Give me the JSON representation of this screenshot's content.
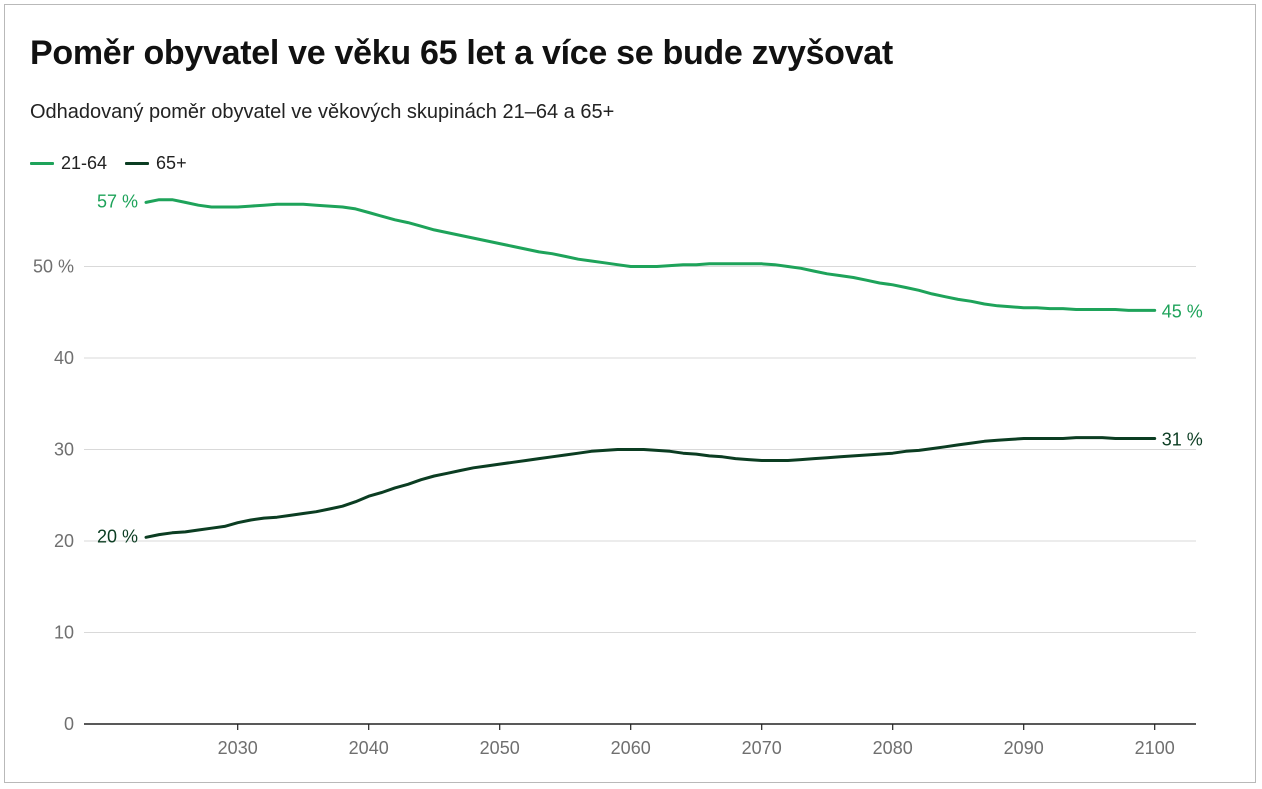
{
  "title": "Poměr obyvatel ve věku 65 let a více se bude zvyšovat",
  "subtitle": "Odhadovaný poměr obyvatel ve věkových skupinách 21–64 a 65+",
  "chart_data": {
    "type": "line",
    "title": "Poměr obyvatel ve věku 65 let a více se bude zvyšovat",
    "subtitle": "Odhadovaný poměr obyvatel ve věkových skupinách 21–64 a 65+",
    "xlabel": "",
    "ylabel": "",
    "xlim": [
      2022,
      2101
    ],
    "ylim": [
      0,
      60
    ],
    "grid": true,
    "legend": "top-left",
    "x_ticks": [
      2030,
      2040,
      2050,
      2060,
      2070,
      2080,
      2090,
      2100
    ],
    "x_tick_labels": [
      "2030",
      "2040",
      "2050",
      "2060",
      "2070",
      "2080",
      "2090",
      "2100"
    ],
    "y_ticks": [
      0,
      10,
      20,
      30,
      40,
      50
    ],
    "y_tick_labels": [
      "0",
      "10",
      "20",
      "30",
      "40",
      "50 %"
    ],
    "series": [
      {
        "name": "21-64",
        "color": "#1ea35a",
        "start_label": "57 %",
        "end_label": "45 %",
        "x": [
          2023,
          2024,
          2025,
          2026,
          2027,
          2028,
          2029,
          2030,
          2031,
          2032,
          2033,
          2034,
          2035,
          2036,
          2037,
          2038,
          2039,
          2040,
          2041,
          2042,
          2043,
          2044,
          2045,
          2046,
          2047,
          2048,
          2049,
          2050,
          2051,
          2052,
          2053,
          2054,
          2055,
          2056,
          2057,
          2058,
          2059,
          2060,
          2061,
          2062,
          2063,
          2064,
          2065,
          2066,
          2067,
          2068,
          2069,
          2070,
          2071,
          2072,
          2073,
          2074,
          2075,
          2076,
          2077,
          2078,
          2079,
          2080,
          2081,
          2082,
          2083,
          2084,
          2085,
          2086,
          2087,
          2088,
          2089,
          2090,
          2091,
          2092,
          2093,
          2094,
          2095,
          2096,
          2097,
          2098,
          2099,
          2100
        ],
        "values": [
          57.0,
          57.3,
          57.3,
          57.0,
          56.7,
          56.5,
          56.5,
          56.5,
          56.6,
          56.7,
          56.8,
          56.8,
          56.8,
          56.7,
          56.6,
          56.5,
          56.3,
          55.9,
          55.5,
          55.1,
          54.8,
          54.4,
          54.0,
          53.7,
          53.4,
          53.1,
          52.8,
          52.5,
          52.2,
          51.9,
          51.6,
          51.4,
          51.1,
          50.8,
          50.6,
          50.4,
          50.2,
          50.0,
          50.0,
          50.0,
          50.1,
          50.2,
          50.2,
          50.3,
          50.3,
          50.3,
          50.3,
          50.3,
          50.2,
          50.0,
          49.8,
          49.5,
          49.2,
          49.0,
          48.8,
          48.5,
          48.2,
          48.0,
          47.7,
          47.4,
          47.0,
          46.7,
          46.4,
          46.2,
          45.9,
          45.7,
          45.6,
          45.5,
          45.5,
          45.4,
          45.4,
          45.3,
          45.3,
          45.3,
          45.3,
          45.2,
          45.2,
          45.2
        ]
      },
      {
        "name": "65+",
        "color": "#0b3d22",
        "start_label": "20 %",
        "end_label": "31 %",
        "x": [
          2023,
          2024,
          2025,
          2026,
          2027,
          2028,
          2029,
          2030,
          2031,
          2032,
          2033,
          2034,
          2035,
          2036,
          2037,
          2038,
          2039,
          2040,
          2041,
          2042,
          2043,
          2044,
          2045,
          2046,
          2047,
          2048,
          2049,
          2050,
          2051,
          2052,
          2053,
          2054,
          2055,
          2056,
          2057,
          2058,
          2059,
          2060,
          2061,
          2062,
          2063,
          2064,
          2065,
          2066,
          2067,
          2068,
          2069,
          2070,
          2071,
          2072,
          2073,
          2074,
          2075,
          2076,
          2077,
          2078,
          2079,
          2080,
          2081,
          2082,
          2083,
          2084,
          2085,
          2086,
          2087,
          2088,
          2089,
          2090,
          2091,
          2092,
          2093,
          2094,
          2095,
          2096,
          2097,
          2098,
          2099,
          2100
        ],
        "values": [
          20.4,
          20.7,
          20.9,
          21.0,
          21.2,
          21.4,
          21.6,
          22.0,
          22.3,
          22.5,
          22.6,
          22.8,
          23.0,
          23.2,
          23.5,
          23.8,
          24.3,
          24.9,
          25.3,
          25.8,
          26.2,
          26.7,
          27.1,
          27.4,
          27.7,
          28.0,
          28.2,
          28.4,
          28.6,
          28.8,
          29.0,
          29.2,
          29.4,
          29.6,
          29.8,
          29.9,
          30.0,
          30.0,
          30.0,
          29.9,
          29.8,
          29.6,
          29.5,
          29.3,
          29.2,
          29.0,
          28.9,
          28.8,
          28.8,
          28.8,
          28.9,
          29.0,
          29.1,
          29.2,
          29.3,
          29.4,
          29.5,
          29.6,
          29.8,
          29.9,
          30.1,
          30.3,
          30.5,
          30.7,
          30.9,
          31.0,
          31.1,
          31.2,
          31.2,
          31.2,
          31.2,
          31.3,
          31.3,
          31.3,
          31.2,
          31.2,
          31.2,
          31.2
        ]
      }
    ]
  }
}
